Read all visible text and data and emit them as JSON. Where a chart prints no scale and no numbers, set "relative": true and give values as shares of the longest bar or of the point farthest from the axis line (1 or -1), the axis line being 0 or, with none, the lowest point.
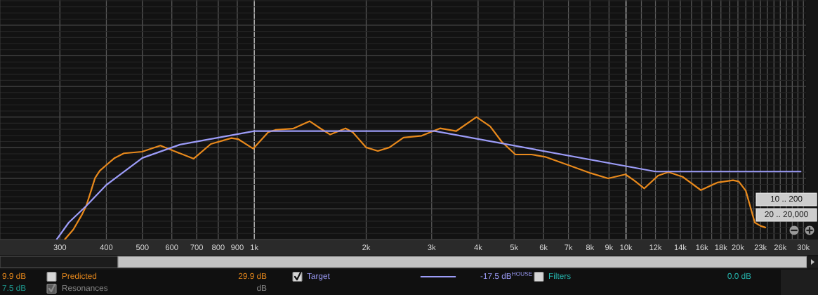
{
  "chart_data": {
    "type": "line",
    "log": "x",
    "relative": true,
    "grid": true,
    "legend": "bottom",
    "tick_labels": "x",
    "xlim": [
      207,
      30500
    ],
    "xticks": [
      300,
      400,
      500,
      600,
      700,
      800,
      900,
      {
        "value": 1000,
        "label": "1k"
      },
      {
        "value": 2000,
        "label": "2k"
      },
      {
        "value": 3000,
        "label": "3k"
      },
      {
        "value": 4000,
        "label": "4k"
      },
      {
        "value": 5000,
        "label": "5k"
      },
      {
        "value": 6000,
        "label": "6k"
      },
      {
        "value": 7000,
        "label": "7k"
      },
      {
        "value": 8000,
        "label": "8k"
      },
      {
        "value": 9000,
        "label": "9k"
      },
      {
        "value": 10000,
        "label": "10k"
      },
      {
        "value": 11000,
        "label": null
      },
      {
        "value": 12000,
        "label": "12k"
      },
      {
        "value": 13000,
        "label": null
      },
      {
        "value": 14000,
        "label": "14k"
      },
      {
        "value": 15000,
        "label": null
      },
      {
        "value": 16000,
        "label": "16k"
      },
      {
        "value": 17000,
        "label": null
      },
      {
        "value": 18000,
        "label": "18k"
      },
      {
        "value": 19000,
        "label": null
      },
      {
        "value": 20000,
        "label": "20k"
      },
      {
        "value": 21000,
        "label": null
      },
      {
        "value": 22000,
        "label": null
      },
      {
        "value": 23000,
        "label": "23k"
      },
      {
        "value": 24000,
        "label": null
      },
      {
        "value": 25000,
        "label": null
      },
      {
        "value": 26000,
        "label": "26k"
      },
      {
        "value": 27000,
        "label": null
      },
      {
        "value": 28000,
        "label": null
      },
      {
        "value": 29000,
        "label": null
      },
      {
        "value": 30000,
        "label": "30k"
      }
    ],
    "series": [
      {
        "name": "Predicted",
        "color": "#e8891c",
        "x": [
          309,
          326,
          343,
          353,
          363,
          373,
          384,
          400,
          421,
          446,
          499,
          559,
          608,
          687,
          764,
          868,
          906,
          993,
          1090,
          1140,
          1270,
          1410,
          1510,
          1600,
          1760,
          1840,
          2000,
          2150,
          2310,
          2520,
          2820,
          3160,
          3490,
          3960,
          4310,
          4630,
          5040,
          5570,
          6060,
          6990,
          8050,
          8950,
          9960,
          10500,
          11200,
          12200,
          13000,
          14200,
          15900,
          17600,
          19400,
          20100,
          21000,
          22200,
          23000,
          23700
        ],
        "values": [
          0,
          0.082,
          0.197,
          0.274,
          0.388,
          0.503,
          0.561,
          0.608,
          0.666,
          0.704,
          0.717,
          0.767,
          0.723,
          0.66,
          0.78,
          0.828,
          0.819,
          0.742,
          0.876,
          0.895,
          0.905,
          0.966,
          0.905,
          0.857,
          0.908,
          0.876,
          0.752,
          0.723,
          0.752,
          0.832,
          0.847,
          0.908,
          0.885,
          1.0,
          0.924,
          0.799,
          0.694,
          0.694,
          0.675,
          0.608,
          0.541,
          0.499,
          0.532,
          0.484,
          0.417,
          0.522,
          0.551,
          0.512,
          0.403,
          0.465,
          0.484,
          0.474,
          0.398,
          0.139,
          0.111,
          0.098
        ]
      },
      {
        "name": "Target",
        "color": "#9c9cf8",
        "x": [
          294,
          317,
          353,
          400,
          500,
          631,
          1000,
          3060,
          12000,
          29500
        ],
        "values": [
          0,
          0.139,
          0.274,
          0.446,
          0.666,
          0.775,
          0.885,
          0.885,
          0.555,
          0.555
        ]
      }
    ],
    "annotations": [
      "10 .. 200",
      "20 .. 20,000",
      "9.9 dB",
      "29.9 dB",
      "-17.5 dB$^{HOUSE}$",
      "Filters",
      "0.0 dB",
      "7.5 dB",
      "Resonances",
      "dB"
    ]
  }
}
